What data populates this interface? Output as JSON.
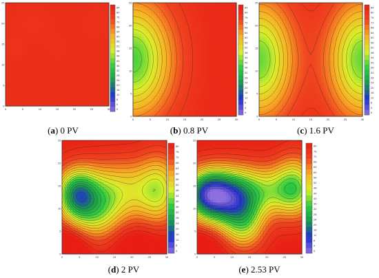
{
  "panels": [
    {
      "letter": "a",
      "caption": "0 PV",
      "x_ticks": [
        "0",
        "5",
        "10",
        "15",
        "20",
        "25",
        "30"
      ],
      "y_ticks": [
        "0",
        "5",
        "10",
        "15",
        "20",
        "25"
      ],
      "scale_labels": [
        "84",
        "80",
        "76",
        "72",
        "68",
        "64",
        "60",
        "56",
        "52",
        "48",
        "44",
        "40",
        "36",
        "32",
        "28",
        "24",
        "20",
        "16",
        "12",
        "8",
        "4",
        "0"
      ]
    },
    {
      "letter": "b",
      "caption": "0.8 PV",
      "x_ticks": [
        "0",
        "5",
        "10",
        "15",
        "20",
        "25",
        "30"
      ],
      "y_ticks": [
        "0",
        "5",
        "10",
        "15",
        "20",
        "25"
      ],
      "scale_labels": [
        "84",
        "80",
        "76",
        "72",
        "68",
        "64",
        "60",
        "56",
        "52",
        "48",
        "44",
        "40",
        "36",
        "32",
        "28",
        "24",
        "20",
        "16",
        "12",
        "8",
        "4",
        "0"
      ]
    },
    {
      "letter": "c",
      "caption": "1.6 PV",
      "x_ticks": [
        "0",
        "5",
        "10",
        "15",
        "20",
        "25",
        "30"
      ],
      "y_ticks": [
        "0",
        "5",
        "10",
        "15",
        "20",
        "25"
      ],
      "scale_labels": [
        "84",
        "80",
        "76",
        "72",
        "68",
        "64",
        "60",
        "56",
        "52",
        "48",
        "44",
        "40",
        "36",
        "32",
        "28",
        "24",
        "20",
        "16",
        "12",
        "8",
        "4",
        "0"
      ]
    },
    {
      "letter": "d",
      "caption": "2 PV",
      "x_ticks": [
        "0",
        "5",
        "10",
        "15",
        "20",
        "25",
        "30"
      ],
      "y_ticks": [
        "0",
        "5",
        "10",
        "15",
        "20",
        "25"
      ],
      "scale_labels": [
        "80",
        "76",
        "72",
        "68",
        "64",
        "60",
        "56",
        "52",
        "48",
        "44",
        "40",
        "36",
        "32",
        "28",
        "24",
        "20",
        "16",
        "12",
        "8",
        "4"
      ]
    },
    {
      "letter": "e",
      "caption": "2.53 PV",
      "x_ticks": [
        "0",
        "5",
        "10",
        "15",
        "20",
        "25",
        "30"
      ],
      "y_ticks": [
        "0",
        "5",
        "10",
        "15",
        "20",
        "25"
      ],
      "scale_labels": [
        "80",
        "76",
        "72",
        "68",
        "64",
        "60",
        "56",
        "52",
        "48",
        "44",
        "40",
        "36",
        "32",
        "28",
        "24",
        "20",
        "16",
        "12",
        "8",
        "4",
        "0"
      ]
    }
  ],
  "chart_data": [
    {
      "type": "heatmap",
      "id": "a",
      "xlim": [
        0,
        30
      ],
      "ylim": [
        0,
        25
      ],
      "zlim": [
        0,
        84
      ],
      "colorscale": [
        "#8e6ee0",
        "#2030d0",
        "#1a9850",
        "#2ecc40",
        "#d9ef2b",
        "#f8b024",
        "#f04520",
        "#e81d13"
      ],
      "field": [
        {
          "x": 2.5,
          "y": 14,
          "amp": -2,
          "sx": 2,
          "sy": 2
        },
        {
          "x": 15,
          "y": 14,
          "amp": -1,
          "sx": 2,
          "sy": 2
        },
        {
          "x": 8,
          "y": 20,
          "amp": -1.5,
          "sx": 4,
          "sy": 3
        },
        {
          "x": 26,
          "y": 20,
          "amp": -1,
          "sx": 3,
          "sy": 3
        }
      ],
      "base": 79
    },
    {
      "type": "heatmap",
      "id": "b",
      "xlim": [
        0,
        30
      ],
      "ylim": [
        0,
        25
      ],
      "zlim": [
        0,
        84
      ],
      "colorscale": [
        "#8e6ee0",
        "#2030d0",
        "#1a9850",
        "#2ecc40",
        "#d9ef2b",
        "#f8b024",
        "#f04520",
        "#e81d13"
      ],
      "field": [
        {
          "x": 0,
          "y": 12.5,
          "amp": -42,
          "sx": 8,
          "sy": 9
        }
      ],
      "base": 80
    },
    {
      "type": "heatmap",
      "id": "c",
      "xlim": [
        0,
        30
      ],
      "ylim": [
        0,
        25
      ],
      "zlim": [
        0,
        84
      ],
      "colorscale": [
        "#8e6ee0",
        "#2030d0",
        "#1a9850",
        "#2ecc40",
        "#d9ef2b",
        "#f8b024",
        "#f04520",
        "#e81d13"
      ],
      "field": [
        {
          "x": 0,
          "y": 12.5,
          "amp": -40,
          "sx": 7,
          "sy": 9
        },
        {
          "x": 30,
          "y": 12.5,
          "amp": -40,
          "sx": 7,
          "sy": 9
        }
      ],
      "base": 80
    },
    {
      "type": "heatmap",
      "id": "d",
      "xlim": [
        0,
        30
      ],
      "ylim": [
        0,
        25
      ],
      "zlim": [
        0,
        80
      ],
      "colorscale": [
        "#8e6ee0",
        "#2030d0",
        "#1a9850",
        "#2ecc40",
        "#d9ef2b",
        "#f8b024",
        "#f04520",
        "#e81d13"
      ],
      "field": [
        {
          "x": 4,
          "y": 13,
          "amp": -45,
          "sx": 4,
          "sy": 4
        },
        {
          "x": 10,
          "y": 9,
          "amp": -25,
          "sx": 5,
          "sy": 5
        },
        {
          "x": 18,
          "y": 14,
          "amp": -28,
          "sx": 10,
          "sy": 5
        },
        {
          "x": 28,
          "y": 14,
          "amp": -20,
          "sx": 4,
          "sy": 6
        },
        {
          "x": 2,
          "y": 1,
          "amp": 15,
          "sx": 4,
          "sy": 3
        },
        {
          "x": 22,
          "y": 2,
          "amp": 8,
          "sx": 6,
          "sy": 3
        }
      ],
      "base": 80
    },
    {
      "type": "heatmap",
      "id": "e",
      "xlim": [
        0,
        30
      ],
      "ylim": [
        0,
        25
      ],
      "zlim": [
        0,
        80
      ],
      "colorscale": [
        "#8e6ee0",
        "#2030d0",
        "#1a9850",
        "#2ecc40",
        "#d9ef2b",
        "#f8b024",
        "#f04520",
        "#e81d13"
      ],
      "field": [
        {
          "x": 3,
          "y": 13,
          "amp": -62,
          "sx": 5,
          "sy": 4
        },
        {
          "x": 11,
          "y": 11,
          "amp": -35,
          "sx": 5,
          "sy": 5
        },
        {
          "x": 20,
          "y": 14,
          "amp": -30,
          "sx": 10,
          "sy": 4
        },
        {
          "x": 28,
          "y": 15,
          "amp": -25,
          "sx": 4,
          "sy": 5
        },
        {
          "x": 14,
          "y": 6,
          "amp": -20,
          "sx": 4,
          "sy": 4
        },
        {
          "x": 2,
          "y": 1,
          "amp": 10,
          "sx": 4,
          "sy": 3
        }
      ],
      "base": 80
    }
  ]
}
